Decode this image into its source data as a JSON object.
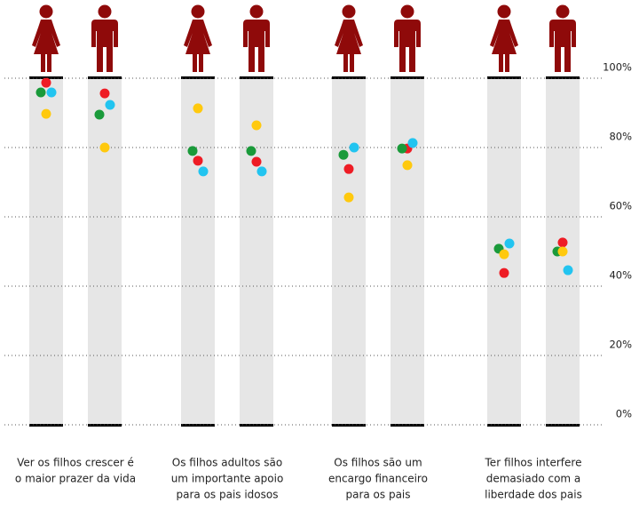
{
  "chart_data": {
    "type": "dot",
    "categories": [
      [
        "Ver os filhos crescer é",
        "o maior prazer da vida"
      ],
      [
        "Os filhos adultos são",
        "um importante apoio",
        "para os pais idosos"
      ],
      [
        "Os filhos são um",
        "encargo financeiro",
        "para os pais"
      ],
      [
        "Ter filhos interfere",
        "demasiado com a",
        "liberdade dos pais"
      ]
    ],
    "series": [
      {
        "color": "#ee1c25",
        "values": [
          [
            98.7,
            95.6
          ],
          [
            76.2,
            75.9
          ],
          [
            73.8,
            79.7
          ],
          [
            43.8,
            52.6
          ]
        ]
      },
      {
        "color": "#1a9a3a",
        "values": [
          [
            95.9,
            89.5
          ],
          [
            79,
            79
          ],
          [
            77.9,
            79.7
          ],
          [
            50.8,
            50
          ]
        ]
      },
      {
        "color": "#22c4f0",
        "values": [
          [
            95.9,
            92.3
          ],
          [
            73.1,
            73.1
          ],
          [
            80,
            81.3
          ],
          [
            52.3,
            44.6
          ]
        ]
      },
      {
        "color": "#ffc90e",
        "values": [
          [
            89.7,
            80
          ],
          [
            91.3,
            86.4
          ],
          [
            65.6,
            74.9
          ],
          [
            49.2,
            50
          ]
        ]
      }
    ],
    "ylim": [
      0,
      100
    ],
    "yticks": [
      {
        "value": 0,
        "label": "0%"
      },
      {
        "value": 20,
        "label": "20%"
      },
      {
        "value": 40,
        "label": "40%"
      },
      {
        "value": 60,
        "label": "60%"
      },
      {
        "value": 80,
        "label": "80%"
      },
      {
        "value": 100,
        "label": "100%"
      }
    ],
    "grid": true
  }
}
